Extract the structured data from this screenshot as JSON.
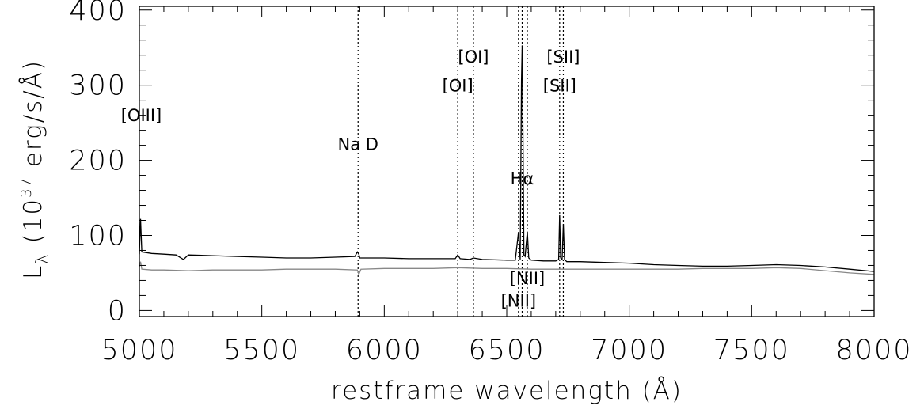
{
  "chart_data": {
    "type": "line",
    "xlabel": "restframe wavelength (Å)",
    "ylabel": {
      "main": "L",
      "sub": "λ",
      "rest": " (10",
      "exp": "37",
      "unit": " erg/s/Å)"
    },
    "xlim": [
      5000,
      8000
    ],
    "ylim": [
      -8,
      405
    ],
    "x_ticks": [
      5000,
      5500,
      6000,
      6500,
      7000,
      7500,
      8000
    ],
    "x_tick_labels": [
      "5000",
      "5500",
      "6000",
      "6500",
      "7000",
      "7500",
      "8000"
    ],
    "y_ticks": [
      0,
      100,
      200,
      300,
      400
    ],
    "y_tick_labels": [
      "0",
      "100",
      "200",
      "300",
      "400"
    ],
    "grid": false,
    "series": [
      {
        "color": "#000000",
        "x": [
          5000,
          5005,
          5010,
          5050,
          5100,
          5150,
          5180,
          5200,
          5300,
          5400,
          5500,
          5600,
          5700,
          5800,
          5880,
          5890,
          5896,
          5900,
          6000,
          6100,
          6200,
          6290,
          6300,
          6310,
          6350,
          6364,
          6400,
          6500,
          6535,
          6548,
          6555,
          6560,
          6563,
          6566,
          6570,
          6575,
          6584,
          6590,
          6600,
          6650,
          6700,
          6712,
          6716,
          6720,
          6726,
          6731,
          6736,
          6745,
          6800,
          6900,
          7000,
          7100,
          7200,
          7300,
          7400,
          7500,
          7600,
          7700,
          7800,
          7900,
          8000
        ],
        "y": [
          75,
          122,
          78,
          76,
          75,
          74,
          68,
          74,
          73,
          72,
          71,
          70,
          70,
          71,
          72,
          78,
          75,
          70,
          70,
          69,
          69,
          69,
          74,
          69,
          68,
          70,
          68,
          67,
          67,
          104,
          68,
          305,
          353,
          250,
          74,
          72,
          105,
          70,
          67,
          66,
          66,
          68,
          127,
          70,
          68,
          115,
          68,
          65,
          65,
          64,
          63,
          61,
          60,
          59,
          59,
          60,
          61,
          60,
          58,
          55,
          52
        ]
      },
      {
        "color": "#888888",
        "x": [
          5000,
          5005,
          5010,
          5050,
          5100,
          5200,
          5300,
          5400,
          5500,
          5600,
          5700,
          5800,
          5890,
          5896,
          5905,
          6000,
          6100,
          6200,
          6300,
          6400,
          6500,
          6600,
          6700,
          6800,
          6900,
          7000,
          7100,
          7200,
          7300,
          7400,
          7500,
          7600,
          7700,
          7800,
          7900,
          8000
        ],
        "y": [
          58,
          65,
          55,
          54,
          54,
          53,
          54,
          54,
          54,
          55,
          55,
          55,
          54,
          48,
          55,
          56,
          56,
          56,
          57,
          56,
          56,
          55,
          55,
          55,
          55,
          55,
          55,
          55,
          56,
          56,
          56,
          57,
          56,
          53,
          50,
          48
        ]
      }
    ],
    "vlines": [
      5893,
      6300,
      6364,
      6548,
      6563,
      6584,
      6716,
      6731
    ],
    "annotations": [
      {
        "text": "[OIII]",
        "x": 5008,
        "y": 252
      },
      {
        "text": "Na D",
        "x": 5893,
        "y": 214
      },
      {
        "text": "[OI]",
        "x": 6300,
        "y": 292
      },
      {
        "text": "[OI]",
        "x": 6364,
        "y": 330
      },
      {
        "text": "[NII]",
        "x": 6548,
        "y": 5
      },
      {
        "text": "Hα",
        "x": 6563,
        "y": 168
      },
      {
        "text": "[NII]",
        "x": 6584,
        "y": 35
      },
      {
        "text": "[SII]",
        "x": 6716,
        "y": 292
      },
      {
        "text": "[SII]",
        "x": 6731,
        "y": 330
      }
    ]
  }
}
